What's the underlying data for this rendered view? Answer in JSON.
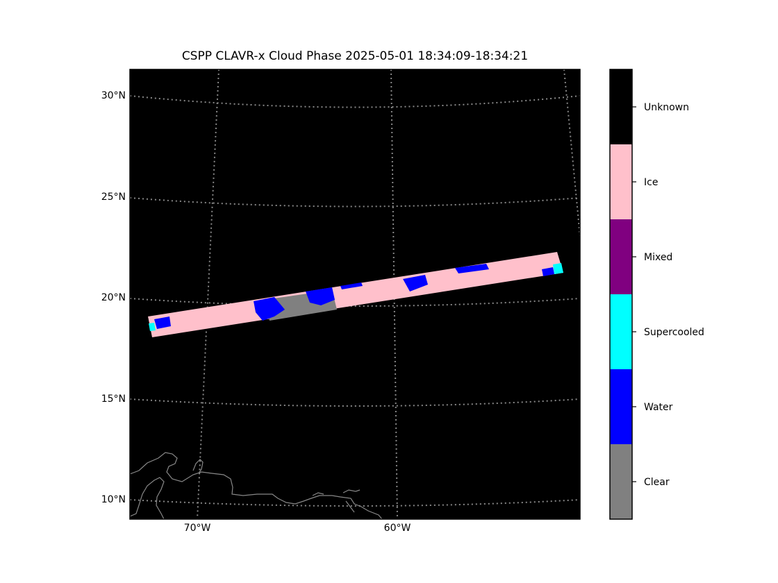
{
  "title": "CSPP CLAVR-x Cloud Phase 2025-05-01 18:34:09-18:34:21",
  "map": {
    "background": "#000000",
    "gridline_color": "#888888",
    "coastline_color": "#888888",
    "lat_labels": [
      "30°N",
      "25°N",
      "20°N",
      "15°N",
      "10°N"
    ],
    "lon_labels": [
      "70°W",
      "60°W"
    ]
  },
  "swath": {
    "dominant_phase": "Ice",
    "phases_present": [
      "Ice",
      "Water",
      "Clear",
      "Supercooled"
    ]
  },
  "colorbar": {
    "categories": [
      {
        "label": "Unknown",
        "color": "#000000"
      },
      {
        "label": "Ice",
        "color": "#ffc0cb"
      },
      {
        "label": "Mixed",
        "color": "#800080"
      },
      {
        "label": "Supercooled",
        "color": "#00ffff"
      },
      {
        "label": "Water",
        "color": "#0000ff"
      },
      {
        "label": "Clear",
        "color": "#808080"
      }
    ]
  }
}
